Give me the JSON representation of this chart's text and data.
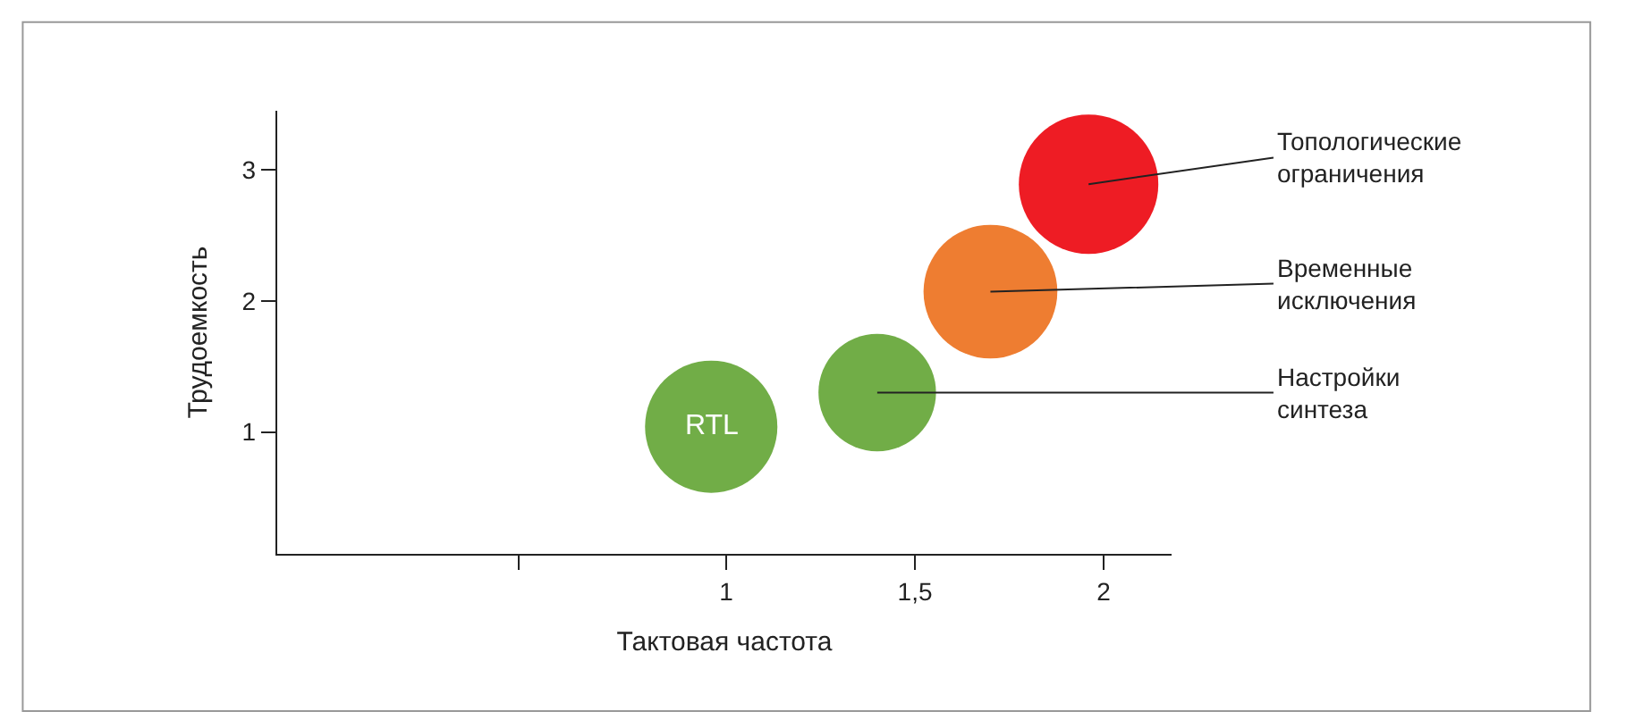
{
  "chart_data": {
    "type": "bubble",
    "xlabel": "Тактовая частота",
    "ylabel": "Трудоемкость",
    "x": [
      0.96,
      1.4,
      1.7,
      1.96
    ],
    "values": [
      1.04,
      1.3,
      2.07,
      2.89
    ],
    "sizes": [
      0.9,
      0.71,
      0.92,
      1.0
    ],
    "colors": [
      "#71ad47",
      "#71ad47",
      "#ee7d31",
      "#ee1c24"
    ],
    "xlim": [
      -0.19,
      2.18
    ],
    "ylim": [
      0.07,
      3.45
    ],
    "xticks": [
      {
        "value": 0.45,
        "label": null
      },
      1,
      {
        "value": 1.5,
        "label": "1,5"
      },
      2
    ],
    "yticks": [
      1,
      2,
      3
    ],
    "legend": false,
    "annotations": [
      {
        "text": "RTL",
        "x": 0.96,
        "y": 1.04
      },
      {
        "text": "Топологические\nограничения",
        "x": 1.96,
        "y": 2.89
      },
      {
        "text": "Временные\nисключения",
        "x": 1.7,
        "y": 2.07
      },
      {
        "text": "Настройки\nсинтеза",
        "x": 1.4,
        "y": 1.3
      }
    ]
  }
}
